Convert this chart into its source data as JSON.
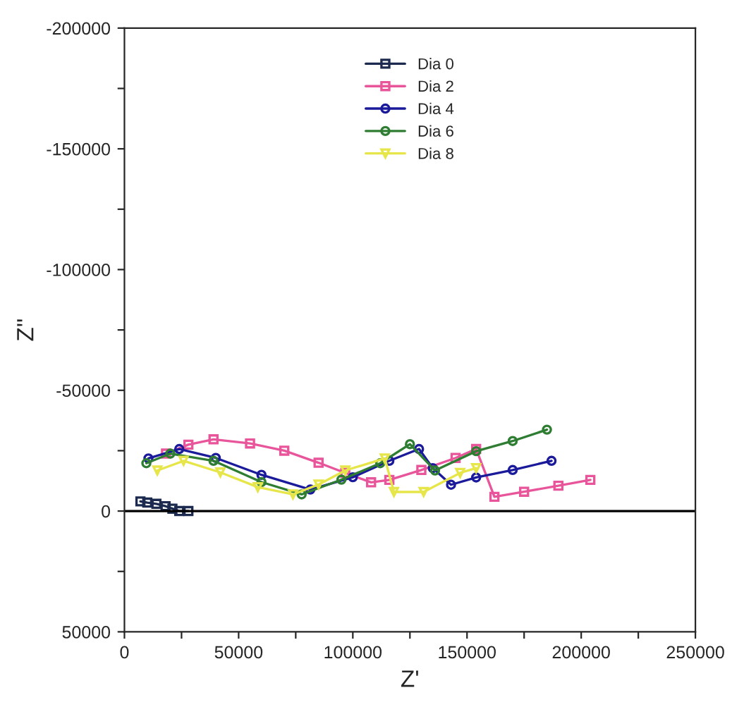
{
  "chart_data": {
    "type": "line",
    "xlabel": "Z'",
    "ylabel": "Z''",
    "xlim": [
      0,
      250000
    ],
    "xticks": [
      0,
      {
        "value": 25000,
        "label": null
      },
      50000,
      {
        "value": 75000,
        "label": null
      },
      100000,
      {
        "value": 125000,
        "label": null
      },
      150000,
      {
        "value": 175000,
        "label": null
      },
      200000,
      {
        "value": 225000,
        "label": null
      },
      250000
    ],
    "ylim": [
      50000,
      -200000
    ],
    "yticks": [
      -200000,
      {
        "value": -175000,
        "label": null
      },
      -150000,
      {
        "value": -125000,
        "label": null
      },
      -100000,
      {
        "value": -75000,
        "label": null
      },
      -50000,
      {
        "value": -25000,
        "label": null
      },
      0,
      {
        "value": 25000,
        "label": null
      },
      50000
    ],
    "ref_lines": [
      {
        "axis": "y",
        "value": 0,
        "color": "#000000"
      }
    ],
    "grid": false,
    "legend": "top",
    "series": [
      {
        "name": "Dia 0",
        "color": "#1b2a4e",
        "marker": "square",
        "x": [
          7000,
          10000,
          14000,
          18000,
          21000,
          24000,
          28000
        ],
        "values": [
          -4000,
          -3500,
          -3000,
          -2000,
          -1000,
          0,
          0
        ]
      },
      {
        "name": "Dia 2",
        "color": "#e8559a",
        "marker": "square",
        "x": [
          18200,
          28000,
          39000,
          55000,
          70000,
          85000,
          96700,
          108000,
          116000,
          130000,
          145000,
          154000,
          162000,
          175000,
          190000,
          204000
        ],
        "values": [
          -23800,
          -27500,
          -29700,
          -28000,
          -25000,
          -20000,
          -15800,
          -11900,
          -12900,
          -17000,
          -22000,
          -25700,
          -5900,
          -8000,
          -10500,
          -12900
        ]
      },
      {
        "name": "Dia 4",
        "color": "#1a1a9a",
        "marker": "circle",
        "x": [
          10500,
          24000,
          40000,
          60000,
          81400,
          100000,
          116000,
          129000,
          135000,
          143000,
          154000,
          170000,
          187000
        ],
        "values": [
          -21800,
          -25700,
          -22000,
          -15000,
          -8900,
          -14000,
          -20800,
          -25700,
          -17800,
          -10900,
          -13900,
          -17000,
          -20800
        ]
      },
      {
        "name": "Dia 6",
        "color": "#2e7d32",
        "marker": "circle",
        "x": [
          9600,
          20100,
          39000,
          60000,
          77600,
          95000,
          112000,
          125000,
          136000,
          154000,
          170000,
          185000
        ],
        "values": [
          -19800,
          -23800,
          -20800,
          -12000,
          -6900,
          -13000,
          -19800,
          -27700,
          -16800,
          -24800,
          -29000,
          -33700
        ]
      },
      {
        "name": "Dia 8",
        "color": "#e6e64a",
        "marker": "triangle",
        "x": [
          14400,
          25900,
          42000,
          58400,
          73800,
          85000,
          96700,
          114000,
          118000,
          131000,
          147000,
          154000
        ],
        "values": [
          -16800,
          -20800,
          -16000,
          -9900,
          -6900,
          -11000,
          -16800,
          -21800,
          -7900,
          -7900,
          -15800,
          -17800
        ]
      }
    ]
  }
}
